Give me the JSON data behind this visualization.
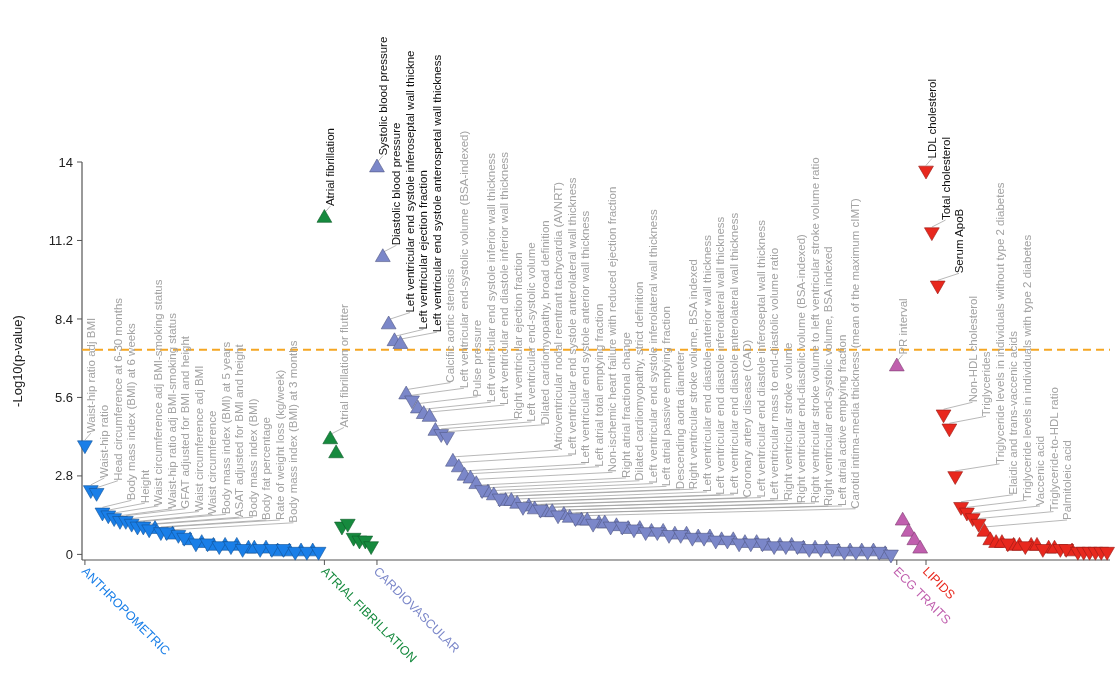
{
  "chart_data": {
    "type": "scatter",
    "ylabel": "-Log10(p-value)",
    "ylim": [
      -0.2,
      14
    ],
    "yticks": [
      0,
      2.8,
      5.6,
      8.4,
      11.2,
      14
    ],
    "categories": [
      "ANTHROPOMETRIC",
      null,
      null,
      null,
      null,
      null,
      null,
      null,
      null,
      null,
      null,
      null,
      null,
      null,
      null,
      null,
      null,
      null,
      null,
      null,
      null,
      null,
      null,
      null,
      null,
      null,
      null,
      null,
      null,
      null,
      null,
      null,
      null,
      null,
      null,
      null,
      null,
      null,
      null,
      null,
      null,
      "ATRIAL FIBRILLATION",
      null,
      null,
      null,
      null,
      null,
      null,
      null,
      null,
      "CARDIOVASCULAR",
      null,
      null,
      null,
      null,
      null,
      null,
      null,
      null,
      null,
      null,
      null,
      null,
      null,
      null,
      null,
      null,
      null,
      null,
      null,
      null,
      null,
      null,
      null,
      null,
      null,
      null,
      null,
      null,
      null,
      null,
      null,
      null,
      null,
      null,
      null,
      null,
      null,
      null,
      null,
      null,
      null,
      null,
      null,
      null,
      null,
      null,
      null,
      null,
      null,
      null,
      null,
      null,
      null,
      null,
      null,
      null,
      null,
      null,
      null,
      null,
      null,
      null,
      null,
      null,
      null,
      null,
      null,
      null,
      null,
      null,
      null,
      null,
      null,
      null,
      null,
      null,
      null,
      null,
      null,
      null,
      null,
      null,
      null,
      null,
      null,
      null,
      null,
      null,
      "ECG TRAITS",
      null,
      null,
      null,
      null,
      "LIPIDS",
      null,
      null,
      null,
      null,
      null,
      null,
      null,
      null,
      null,
      null,
      null,
      null,
      null,
      null,
      null,
      null,
      null,
      null,
      null,
      null,
      null,
      null,
      null,
      null,
      null,
      null,
      null,
      null,
      null,
      null,
      null
    ],
    "series": [
      {
        "marker": "triangle",
        "values": [
          null,
          null,
          null,
          null,
          null,
          null,
          null,
          null,
          null,
          null,
          null,
          null,
          0.9,
          null,
          null,
          0.7,
          null,
          null,
          0.5,
          null,
          0.4,
          null,
          0.3,
          null,
          0.3,
          null,
          0.3,
          null,
          0.2,
          0.2,
          null,
          0.2,
          null,
          0.1,
          null,
          0.1,
          null,
          0.1,
          null,
          0.1,
          null,
          12.0,
          4.1,
          3.6,
          null,
          null,
          null,
          null,
          null,
          null,
          13.8,
          10.6,
          8.2,
          7.6,
          7.5,
          5.7,
          null,
          5.2,
          5.0,
          4.9,
          4.4,
          null,
          null,
          3.3,
          3.1,
          2.8,
          2.7,
          2.5,
          null,
          2.2,
          2.1,
          null,
          1.9,
          1.9,
          1.8,
          null,
          1.7,
          1.6,
          null,
          1.5,
          1.5,
          null,
          1.4,
          1.3,
          null,
          1.2,
          1.2,
          null,
          1.1,
          1.1,
          null,
          1.0,
          null,
          0.9,
          null,
          0.9,
          null,
          0.8,
          null,
          0.8,
          null,
          0.7,
          null,
          0.7,
          null,
          0.6,
          null,
          0.6,
          null,
          0.5,
          null,
          0.5,
          null,
          0.4,
          null,
          0.4,
          null,
          0.3,
          null,
          0.3,
          null,
          0.3,
          null,
          0.2,
          null,
          0.2,
          null,
          0.2,
          null,
          0.1,
          null,
          0.1,
          null,
          0.1,
          null,
          0.1,
          null,
          0.0,
          null,
          6.7,
          1.2,
          0.8,
          0.5,
          0.2,
          null,
          null,
          null,
          null,
          null,
          null,
          null,
          null,
          null,
          null,
          0.8,
          0.5,
          0.4,
          0.4,
          null,
          0.3,
          0.3,
          null,
          0.3,
          0.3,
          null,
          0.2,
          0.2,
          null,
          null,
          0.1,
          null,
          null,
          null,
          null,
          null,
          null
        ],
        "colors": [
          null,
          null,
          null,
          null,
          null,
          null,
          null,
          null,
          null,
          null,
          null,
          null,
          "#1a7fe8",
          null,
          null,
          "#1a7fe8",
          null,
          null,
          "#1a7fe8",
          null,
          "#1a7fe8",
          null,
          "#1a7fe8",
          null,
          "#1a7fe8",
          null,
          "#1a7fe8",
          null,
          "#1a7fe8",
          "#1a7fe8",
          null,
          "#1a7fe8",
          null,
          "#1a7fe8",
          null,
          "#1a7fe8",
          null,
          "#1a7fe8",
          null,
          "#1a7fe8",
          null,
          "#168a3e",
          "#168a3e",
          "#168a3e",
          null,
          null,
          null,
          null,
          null,
          null,
          "#7b87c9",
          "#7b87c9",
          "#7b87c9",
          "#7b87c9",
          "#7b87c9",
          "#7b87c9",
          null,
          "#7b87c9",
          "#7b87c9",
          "#7b87c9",
          "#7b87c9",
          null,
          null,
          "#7b87c9",
          "#7b87c9",
          "#7b87c9",
          "#7b87c9",
          "#7b87c9",
          null,
          "#7b87c9",
          "#7b87c9",
          null,
          "#7b87c9",
          "#7b87c9",
          "#7b87c9",
          null,
          "#7b87c9",
          "#7b87c9",
          null,
          "#7b87c9",
          "#7b87c9",
          null,
          "#7b87c9",
          "#7b87c9",
          null,
          "#7b87c9",
          "#7b87c9",
          null,
          "#7b87c9",
          "#7b87c9",
          null,
          "#7b87c9",
          null,
          "#7b87c9",
          null,
          "#7b87c9",
          null,
          "#7b87c9",
          null,
          "#7b87c9",
          null,
          "#7b87c9",
          null,
          "#7b87c9",
          null,
          "#7b87c9",
          null,
          "#7b87c9",
          null,
          "#7b87c9",
          null,
          "#7b87c9",
          null,
          "#7b87c9",
          null,
          "#7b87c9",
          null,
          "#7b87c9",
          null,
          "#7b87c9",
          null,
          "#7b87c9",
          null,
          "#7b87c9",
          null,
          "#7b87c9",
          null,
          "#7b87c9",
          null,
          "#7b87c9",
          null,
          "#7b87c9",
          null,
          "#7b87c9",
          null,
          "#7b87c9",
          null,
          "#7b87c9",
          null,
          "#c05fae",
          "#c05fae",
          "#c05fae",
          "#c05fae",
          "#c05fae",
          null,
          null,
          null,
          null,
          null,
          null,
          null,
          null,
          null,
          null,
          "#e8281e",
          "#e8281e",
          "#e8281e",
          "#e8281e",
          null,
          "#e8281e",
          "#e8281e",
          null,
          "#e8281e",
          "#e8281e",
          null,
          "#e8281e",
          "#e8281e",
          null,
          null,
          "#e8281e",
          null,
          null,
          null,
          null,
          null,
          null
        ],
        "value_labels": [
          null,
          null,
          null,
          null,
          null,
          null,
          null,
          null,
          null,
          null,
          null,
          null,
          "Body mass index (BMI)",
          null,
          null,
          "Body mass index (BMI) at 3 months",
          null,
          null,
          null,
          null,
          null,
          null,
          null,
          null,
          null,
          null,
          null,
          null,
          null,
          null,
          null,
          null,
          null,
          null,
          null,
          null,
          null,
          null,
          null,
          null,
          null,
          "Atrial fibrillation",
          "Atrial fibrillation or flutter",
          null,
          null,
          null,
          null,
          null,
          null,
          null,
          "Systolic blood pressure",
          "Diastolic blood pressure",
          "Left ventricular end systole inferoseptal wall thickne",
          "Left ventricular ejection fraction",
          "Left ventricular end systole anterospetal wall thickness",
          "Calcific aortic stenosis",
          null,
          "Pulse pressure",
          "Left ventricular end systole inferior wall thickness",
          "Left ventricular end diastole inferior wall thickness",
          "Right ventricular ejection fraction",
          null,
          null,
          "Atrioventricular nodal reentrant tachycardia (AVNRT)",
          "Left ventricular end systole anterolateral wall thickness",
          "Left ventricular end systole anterior wall thickness",
          "Left atrial total emptying fraction",
          "Non-ischemic heart failure with reduced ejection fraction",
          null,
          "Dilated cardiomyopathy, strict definition",
          "Left ventricular end systole inferolateral wall thickness",
          null,
          "Descending aorta diameter",
          "Right ventricular stroke volume, BSA indexed",
          "Left ventricular end diastole anterior wall thickness",
          null,
          "Left ventricular end diastole anterolateral wall thickness",
          "Coronary artery disease (CAD)",
          null,
          "Left ventricular mass to end-diastolic volume ratio",
          "Right ventricular stroke volume",
          null,
          "Right ventricular stroke volume to left ventricular stroke volume ratio",
          "Right ventricular end-systolic volume, BSA indexed",
          null,
          "Carotid intima-media thickness (mean of the maximum cIMT)",
          null,
          null,
          null,
          null,
          null,
          null,
          null,
          null,
          null,
          null,
          null,
          null,
          null,
          null,
          null,
          null,
          null,
          null,
          null,
          null,
          null,
          null,
          null,
          null,
          null,
          null,
          null,
          null,
          null,
          null,
          null,
          null,
          null,
          null,
          null,
          null,
          null,
          null,
          null,
          null,
          null,
          null,
          null,
          null,
          null,
          null,
          null,
          null,
          null,
          null,
          null,
          null,
          null,
          "PR interval",
          null,
          null,
          null,
          null,
          null,
          null,
          null,
          null,
          null,
          null,
          null,
          null,
          null,
          null,
          "Palmitoleic acid",
          null,
          null,
          null,
          null,
          null,
          null,
          null,
          null,
          null,
          null,
          null,
          null,
          null,
          null,
          null,
          null,
          null,
          null,
          null,
          null,
          null
        ]
      },
      {
        "marker": "triangle-down",
        "values": [
          3.9,
          2.3,
          2.2,
          1.5,
          1.4,
          1.3,
          1.2,
          1.2,
          1.1,
          1.0,
          1.0,
          0.9,
          null,
          0.8,
          0.8,
          null,
          0.7,
          0.6,
          null,
          0.4,
          null,
          0.4,
          null,
          0.3,
          null,
          0.3,
          null,
          0.2,
          null,
          null,
          0.2,
          null,
          0.2,
          null,
          0.2,
          null,
          0.1,
          null,
          0.1,
          null,
          0.1,
          null,
          null,
          null,
          1.0,
          1.1,
          0.6,
          0.5,
          0.5,
          0.3,
          null,
          null,
          null,
          null,
          null,
          null,
          5.5,
          null,
          null,
          null,
          null,
          4.3,
          4.2,
          null,
          null,
          null,
          null,
          null,
          2.3,
          null,
          null,
          2.0,
          null,
          null,
          null,
          1.7,
          null,
          null,
          1.6,
          null,
          null,
          1.4,
          null,
          null,
          1.3,
          null,
          null,
          1.1,
          null,
          null,
          1.0,
          null,
          1.0,
          null,
          0.9,
          null,
          0.8,
          null,
          0.8,
          null,
          0.7,
          null,
          0.7,
          null,
          0.6,
          null,
          0.6,
          null,
          0.5,
          null,
          0.5,
          null,
          0.4,
          null,
          0.4,
          null,
          0.4,
          null,
          0.3,
          null,
          0.3,
          null,
          0.3,
          null,
          0.2,
          null,
          0.2,
          null,
          0.2,
          null,
          0.1,
          null,
          0.1,
          null,
          0.1,
          null,
          0.1,
          null,
          0.0,
          null,
          null,
          null,
          null,
          null,
          13.7,
          11.5,
          9.6,
          5.0,
          4.5,
          2.8,
          1.7,
          1.5,
          1.3,
          1.1,
          null,
          null,
          null,
          null,
          0.4,
          null,
          null,
          0.3,
          null,
          null,
          0.2,
          null,
          null,
          0.2,
          0.2,
          null,
          0.1,
          0.1,
          0.1,
          0.1,
          0.1,
          0.1
        ],
        "colors": [
          "#1a7fe8",
          "#1a7fe8",
          "#1a7fe8",
          "#1a7fe8",
          "#1a7fe8",
          "#1a7fe8",
          "#1a7fe8",
          "#1a7fe8",
          "#1a7fe8",
          "#1a7fe8",
          "#1a7fe8",
          "#1a7fe8",
          null,
          "#1a7fe8",
          "#1a7fe8",
          null,
          "#1a7fe8",
          "#1a7fe8",
          null,
          "#1a7fe8",
          null,
          "#1a7fe8",
          null,
          "#1a7fe8",
          null,
          "#1a7fe8",
          null,
          "#1a7fe8",
          null,
          null,
          "#1a7fe8",
          null,
          "#1a7fe8",
          null,
          "#1a7fe8",
          null,
          "#1a7fe8",
          null,
          "#1a7fe8",
          null,
          "#1a7fe8",
          null,
          null,
          null,
          "#168a3e",
          "#168a3e",
          "#168a3e",
          "#168a3e",
          "#168a3e",
          "#168a3e",
          null,
          null,
          null,
          null,
          null,
          null,
          "#7b87c9",
          null,
          null,
          null,
          null,
          "#7b87c9",
          "#7b87c9",
          null,
          null,
          null,
          null,
          null,
          "#7b87c9",
          null,
          null,
          "#7b87c9",
          null,
          null,
          null,
          "#7b87c9",
          null,
          null,
          "#7b87c9",
          null,
          null,
          "#7b87c9",
          null,
          null,
          "#7b87c9",
          null,
          null,
          "#7b87c9",
          null,
          null,
          "#7b87c9",
          null,
          "#7b87c9",
          null,
          "#7b87c9",
          null,
          "#7b87c9",
          null,
          "#7b87c9",
          null,
          "#7b87c9",
          null,
          "#7b87c9",
          null,
          "#7b87c9",
          null,
          "#7b87c9",
          null,
          "#7b87c9",
          null,
          "#7b87c9",
          null,
          "#7b87c9",
          null,
          "#7b87c9",
          null,
          "#7b87c9",
          null,
          "#7b87c9",
          null,
          "#7b87c9",
          null,
          "#7b87c9",
          null,
          "#7b87c9",
          null,
          "#7b87c9",
          null,
          "#7b87c9",
          null,
          "#7b87c9",
          null,
          "#7b87c9",
          null,
          "#7b87c9",
          null,
          "#7b87c9",
          null,
          "#7b87c9",
          null,
          null,
          null,
          null,
          null,
          "#e8281e",
          "#e8281e",
          "#e8281e",
          "#e8281e",
          "#e8281e",
          "#e8281e",
          "#e8281e",
          "#e8281e",
          "#e8281e",
          "#e8281e",
          null,
          null,
          null,
          null,
          "#e8281e",
          null,
          null,
          "#e8281e",
          null,
          null,
          "#e8281e",
          null,
          null,
          "#e8281e",
          "#e8281e",
          null,
          "#e8281e",
          "#e8281e",
          "#e8281e",
          "#e8281e",
          "#e8281e",
          "#e8281e"
        ],
        "value_labels": [
          "Waist-hip ratio adj BMI",
          "Waist-hip ratio",
          "Head circumference at 6-30 months",
          "Body mass index (BMI) at 6 weeks",
          "Height",
          "Waist circumference adj BMI-smoking status",
          "Waist-hip ratio adj BMI-smoking status",
          "GFAT adjusted for BMI and height",
          "Waist circumference adj BMI",
          "Waist circumference",
          "Body mass index (BMI) at 5 years",
          "ASAT adjusted for BMI and height",
          null,
          "Body fat percentage",
          "Rate of weight loss (kg/week)",
          null,
          null,
          null,
          null,
          null,
          null,
          null,
          null,
          null,
          null,
          null,
          null,
          null,
          null,
          null,
          null,
          null,
          null,
          null,
          null,
          null,
          null,
          null,
          null,
          null,
          null,
          null,
          null,
          null,
          null,
          null,
          null,
          null,
          null,
          null,
          null,
          null,
          null,
          null,
          null,
          null,
          "Left ventricular end-systolic volume (BSA-indexed)",
          null,
          null,
          null,
          null,
          "Left ventricular end-systolic volume",
          "Dilated cardiomyopathy, broad definition",
          null,
          null,
          null,
          null,
          null,
          "Right atrial fractional change",
          null,
          null,
          "Left atrial passive emptying fraction",
          null,
          null,
          null,
          "Left ventricular end diastole inferolateral wall thickness",
          null,
          null,
          "Left ventricular end diastole inferoseptal wall thickness",
          null,
          null,
          "Right ventricular end-diastolic volume (BSA-indexed)",
          null,
          null,
          "Left atrial active emptying fraction",
          null,
          null,
          null,
          null,
          null,
          null,
          null,
          null,
          null,
          null,
          null,
          null,
          null,
          null,
          null,
          null,
          null,
          null,
          null,
          null,
          null,
          null,
          null,
          null,
          null,
          null,
          null,
          null,
          null,
          null,
          null,
          null,
          null,
          null,
          null,
          null,
          null,
          null,
          null,
          null,
          null,
          null,
          null,
          null,
          null,
          null,
          null,
          null,
          null,
          null,
          null,
          null,
          null,
          null,
          null,
          null,
          null,
          null,
          null,
          "LDL cholesterol",
          "Total cholesterol",
          "Serum ApoB",
          "Non-HDL cholesterol",
          "Triglycerides",
          "Triglyceride levels in individuals without type 2 diabetes",
          "Elaidic and trans-vaccenic acids",
          "Triglyceride levels in individuals with type 2 diabetes",
          "Vaccenic acid",
          "Triglyceride-to-HDL ratio",
          null,
          null,
          null,
          null,
          null,
          null,
          null,
          null,
          null,
          null,
          null,
          null,
          null,
          null,
          null,
          null,
          null,
          null,
          null,
          null,
          null,
          null
        ]
      }
    ],
    "ref_lines": [
      {
        "axis": "y",
        "value": 7.3,
        "color": "#f5a623",
        "line_style": "dashed"
      }
    ]
  }
}
